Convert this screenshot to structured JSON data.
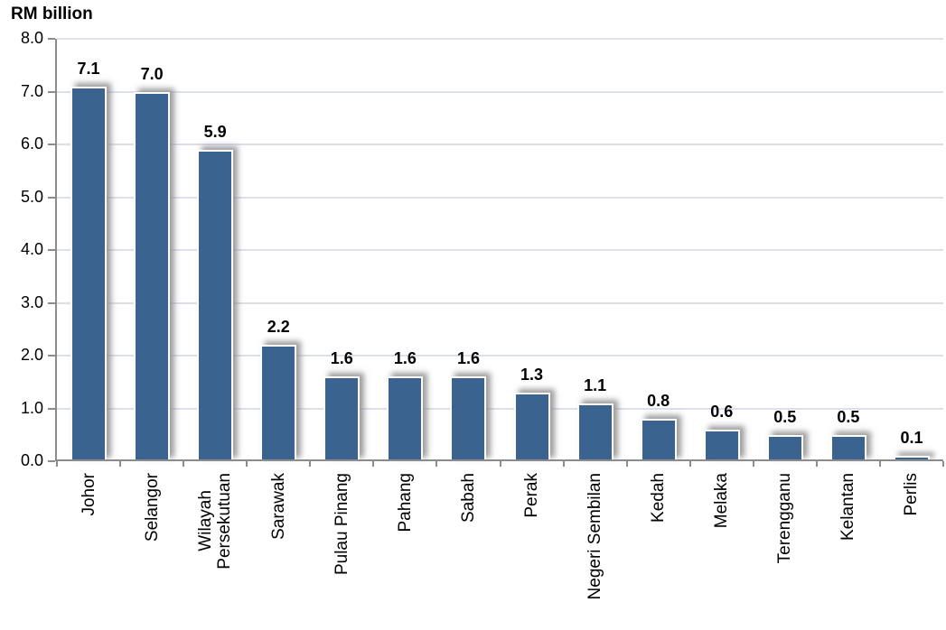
{
  "title": "RM billion",
  "colors": {
    "bar_fill": "#3a6390",
    "bar_border": "#ffffff",
    "bar_shadow": "#8c8c8c",
    "axis_line": "#8c8c8c",
    "gridline": "#dcdfec",
    "text": "#000000",
    "background": "#ffffff"
  },
  "chart_data": {
    "type": "bar",
    "title": "RM billion",
    "xlabel": "",
    "ylabel": "RM billion",
    "categories": [
      "Johor",
      "Selangor",
      "Wilayah\nPersekutuan",
      "Sarawak",
      "Pulau Pinang",
      "Pahang",
      "Sabah",
      "Perak",
      "Negeri Sembilan",
      "Kedah",
      "Melaka",
      "Terengganu",
      "Kelantan",
      "Perlis"
    ],
    "values": [
      7.1,
      7.0,
      5.9,
      2.2,
      1.6,
      1.6,
      1.6,
      1.3,
      1.1,
      0.8,
      0.6,
      0.5,
      0.5,
      0.1
    ],
    "data_labels": [
      "7.1",
      "7.0",
      "5.9",
      "2.2",
      "1.6",
      "1.6",
      "1.6",
      "1.3",
      "1.1",
      "0.8",
      "0.6",
      "0.5",
      "0.5",
      "0.1"
    ],
    "ylim": [
      0,
      8
    ],
    "ytick_step": 1,
    "ytick_labels": [
      "0.0",
      "1.0",
      "2.0",
      "3.0",
      "4.0",
      "5.0",
      "6.0",
      "7.0",
      "8.0"
    ],
    "grid": true,
    "legend": "none",
    "category_label_rotation_deg": 90
  }
}
